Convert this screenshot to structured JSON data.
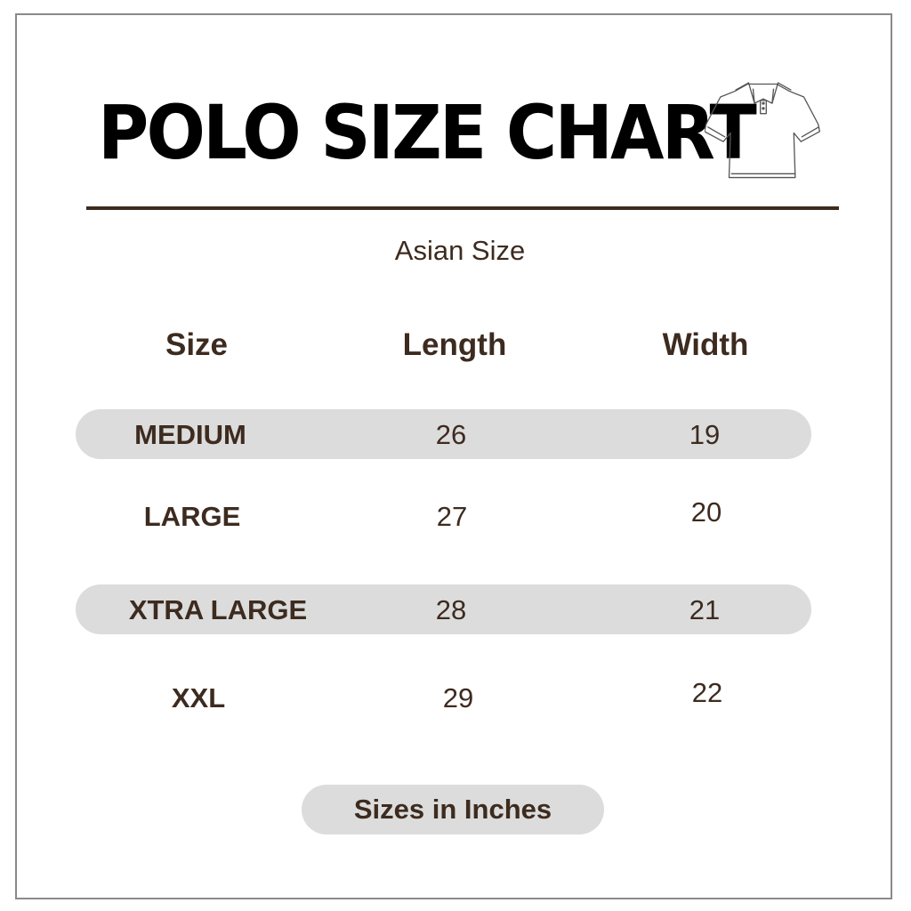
{
  "title": "POLO SIZE CHART",
  "icon": "polo-shirt-icon",
  "subtitle": "Asian Size",
  "headers": [
    "Size",
    "Length",
    "Width"
  ],
  "rows": [
    {
      "size": "MEDIUM",
      "length": "26",
      "width": "19",
      "highlighted": true
    },
    {
      "size": "LARGE",
      "length": "27",
      "width": "20",
      "highlighted": false
    },
    {
      "size": "XTRA LARGE",
      "length": "28",
      "width": "21",
      "highlighted": true
    },
    {
      "size": "XXL",
      "length": "29",
      "width": "22",
      "highlighted": false
    }
  ],
  "footer": "Sizes in Inches",
  "colors": {
    "text": "#3d2b1f",
    "pill": "#dcdcdc",
    "title": "#000000"
  }
}
